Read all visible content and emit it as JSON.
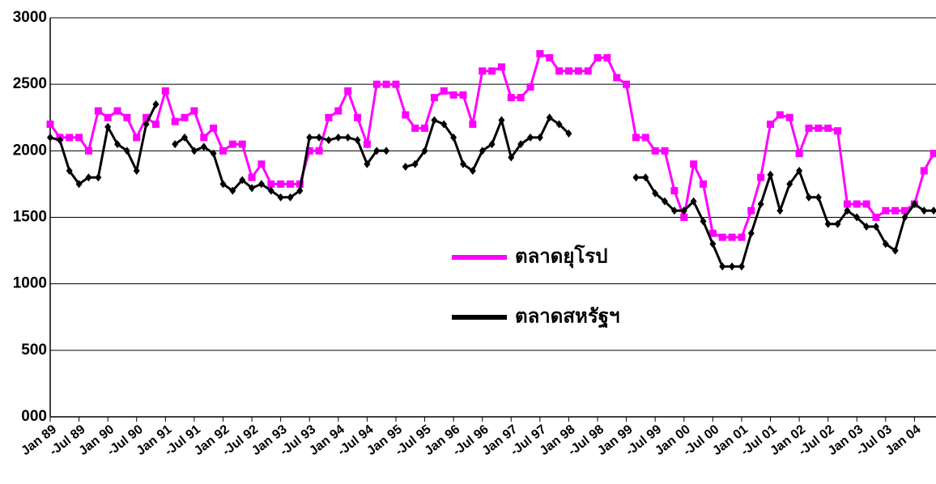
{
  "chart_data": {
    "type": "line",
    "categories": [
      "Jan 89",
      null,
      null,
      "-Jul 89",
      null,
      null,
      "Jan 90",
      null,
      null,
      "-Jul 90",
      null,
      null,
      "Jan 91",
      null,
      null,
      "-Jul 91",
      null,
      null,
      "Jan 92",
      null,
      null,
      "-Jul 92",
      null,
      null,
      "Jan 93",
      null,
      null,
      "-Jul 93",
      null,
      null,
      "Jan 94",
      null,
      null,
      "-Jul 94",
      null,
      null,
      "Jan 95",
      null,
      null,
      "-Jul 95",
      null,
      null,
      "Jan 96",
      null,
      null,
      "-Jul 96",
      null,
      null,
      "Jan 97",
      null,
      null,
      "-Jul 97",
      null,
      null,
      "Jan 98",
      null,
      null,
      "-Jul 98",
      null,
      null,
      "Jan 99",
      null,
      null,
      "-Jul 99",
      null,
      null,
      "Jan 00",
      null,
      null,
      "-Jul 00",
      null,
      null,
      "Jan 01",
      null,
      null,
      "-Jul 01",
      null,
      null,
      "Jan 02",
      null,
      null,
      "-Jul 02",
      null,
      null,
      "Jan 03",
      null,
      null,
      "-Jul 03",
      null,
      null,
      "Jan 04",
      null,
      null
    ],
    "series": [
      {
        "name": "ตลาดยุโรป",
        "color": "#ff00ff",
        "marker": "square",
        "values": [
          2200,
          2100,
          2100,
          2100,
          2000,
          2300,
          2250,
          2300,
          2250,
          2100,
          2250,
          2200,
          2450,
          2220,
          2250,
          2300,
          2100,
          2170,
          2000,
          2050,
          2050,
          1800,
          1900,
          1750,
          1750,
          1750,
          1750,
          2000,
          2000,
          2250,
          2300,
          2450,
          2250,
          2050,
          2500,
          2500,
          2500,
          2270,
          2170,
          2170,
          2400,
          2450,
          2420,
          2420,
          2200,
          2600,
          2600,
          2630,
          2400,
          2400,
          2480,
          2730,
          2700,
          2600,
          2600,
          2600,
          2600,
          2700,
          2700,
          2550,
          2500,
          2100,
          2100,
          2000,
          2000,
          1700,
          1500,
          1900,
          1750,
          1380,
          1350,
          1350,
          1350,
          1550,
          1800,
          2200,
          2270,
          2250,
          1980,
          2170,
          2170,
          2170,
          2150,
          1600,
          1600,
          1600,
          1500,
          1550,
          1550,
          1550,
          1600,
          1850,
          1980
        ]
      },
      {
        "name": "ตลาดสหรัฐฯ",
        "color": "#000000",
        "marker": "diamond",
        "values": [
          2100,
          2080,
          1850,
          1750,
          1800,
          1800,
          2180,
          2050,
          2000,
          1850,
          2200,
          2350,
          null,
          2050,
          2100,
          2000,
          2030,
          1980,
          1750,
          1700,
          1780,
          1720,
          1750,
          1700,
          1650,
          1650,
          1700,
          2100,
          2100,
          2080,
          2100,
          2100,
          2080,
          1900,
          2000,
          2000,
          null,
          1880,
          1900,
          2000,
          2230,
          2200,
          2100,
          1900,
          1850,
          2000,
          2050,
          2230,
          1950,
          2050,
          2100,
          2100,
          2250,
          2200,
          2130,
          null,
          null,
          null,
          null,
          null,
          null,
          1800,
          1800,
          1680,
          1620,
          1550,
          1550,
          1620,
          1470,
          1300,
          1130,
          1130,
          1130,
          1380,
          1600,
          1820,
          1550,
          1750,
          1850,
          1650,
          1650,
          1450,
          1450,
          1550,
          1500,
          1430,
          1430,
          1300,
          1250,
          1500,
          1600,
          1550,
          1550
        ]
      }
    ],
    "ylim": [
      0,
      3000
    ],
    "yticks": [
      {
        "value": 0,
        "label": "000"
      },
      500,
      1000,
      1500,
      2000,
      2500,
      3000
    ],
    "grid": true,
    "legend": "center"
  }
}
